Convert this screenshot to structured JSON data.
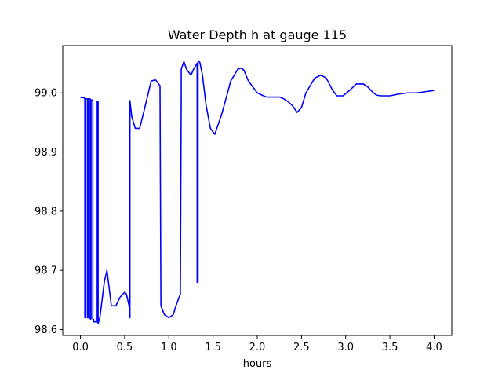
{
  "chart_data": {
    "type": "line",
    "title": "Water Depth h at gauge 115",
    "xlabel": "hours",
    "ylabel": "",
    "xlim": [
      -0.2,
      4.2
    ],
    "ylim": [
      98.59,
      99.08
    ],
    "xticks": [
      0.0,
      0.5,
      1.0,
      1.5,
      2.0,
      2.5,
      3.0,
      3.5,
      4.0
    ],
    "xtick_labels": [
      "0.0",
      "0.5",
      "1.0",
      "1.5",
      "2.0",
      "2.5",
      "3.0",
      "3.5",
      "4.0"
    ],
    "yticks": [
      98.6,
      98.7,
      98.8,
      98.9,
      99.0
    ],
    "ytick_labels": [
      "98.6",
      "98.7",
      "98.8",
      "98.9",
      "99.0"
    ],
    "grid": false,
    "series": [
      {
        "color": "#0000ff",
        "x": [
          0.0,
          0.04,
          0.05,
          0.05,
          0.06,
          0.06,
          0.08,
          0.08,
          0.09,
          0.09,
          0.11,
          0.11,
          0.12,
          0.12,
          0.14,
          0.14,
          0.15,
          0.15,
          0.19,
          0.19,
          0.2,
          0.2,
          0.22,
          0.27,
          0.3,
          0.35,
          0.4,
          0.45,
          0.5,
          0.52,
          0.55,
          0.56,
          0.56,
          0.58,
          0.62,
          0.67,
          0.72,
          0.8,
          0.85,
          0.9,
          0.91,
          0.91,
          0.95,
          1.0,
          1.05,
          1.08,
          1.13,
          1.14,
          1.14,
          1.17,
          1.2,
          1.25,
          1.28,
          1.32,
          1.32,
          1.33,
          1.33,
          1.35,
          1.38,
          1.42,
          1.47,
          1.52,
          1.6,
          1.7,
          1.78,
          1.82,
          1.85,
          1.9,
          2.0,
          2.1,
          2.2,
          2.25,
          2.3,
          2.35,
          2.4,
          2.45,
          2.5,
          2.55,
          2.65,
          2.72,
          2.78,
          2.85,
          2.9,
          2.97,
          3.05,
          3.12,
          3.2,
          3.25,
          3.3,
          3.35,
          3.4,
          3.5,
          3.6,
          3.7,
          3.8,
          3.9,
          4.0
        ],
        "y": [
          98.992,
          98.992,
          98.99,
          98.62,
          98.62,
          98.99,
          98.99,
          98.62,
          98.62,
          98.99,
          98.99,
          98.618,
          98.618,
          98.988,
          98.988,
          98.617,
          98.617,
          98.613,
          98.613,
          98.985,
          98.985,
          98.61,
          98.62,
          98.68,
          98.7,
          98.64,
          98.64,
          98.655,
          98.663,
          98.66,
          98.64,
          98.62,
          98.987,
          98.96,
          98.94,
          98.94,
          98.97,
          99.02,
          99.022,
          99.012,
          98.64,
          98.64,
          98.625,
          98.62,
          98.625,
          98.64,
          98.66,
          98.99,
          99.04,
          99.053,
          99.04,
          99.03,
          99.04,
          99.05,
          98.68,
          98.68,
          99.053,
          99.052,
          99.03,
          98.98,
          98.94,
          98.93,
          98.965,
          99.02,
          99.04,
          99.042,
          99.038,
          99.02,
          99.0,
          98.993,
          98.993,
          98.993,
          98.99,
          98.985,
          98.978,
          98.967,
          98.975,
          99.0,
          99.025,
          99.03,
          99.025,
          99.005,
          98.995,
          98.995,
          99.005,
          99.015,
          99.015,
          99.01,
          99.002,
          98.996,
          98.995,
          98.995,
          98.998,
          99.0,
          99.0,
          99.002,
          99.004
        ]
      }
    ]
  }
}
